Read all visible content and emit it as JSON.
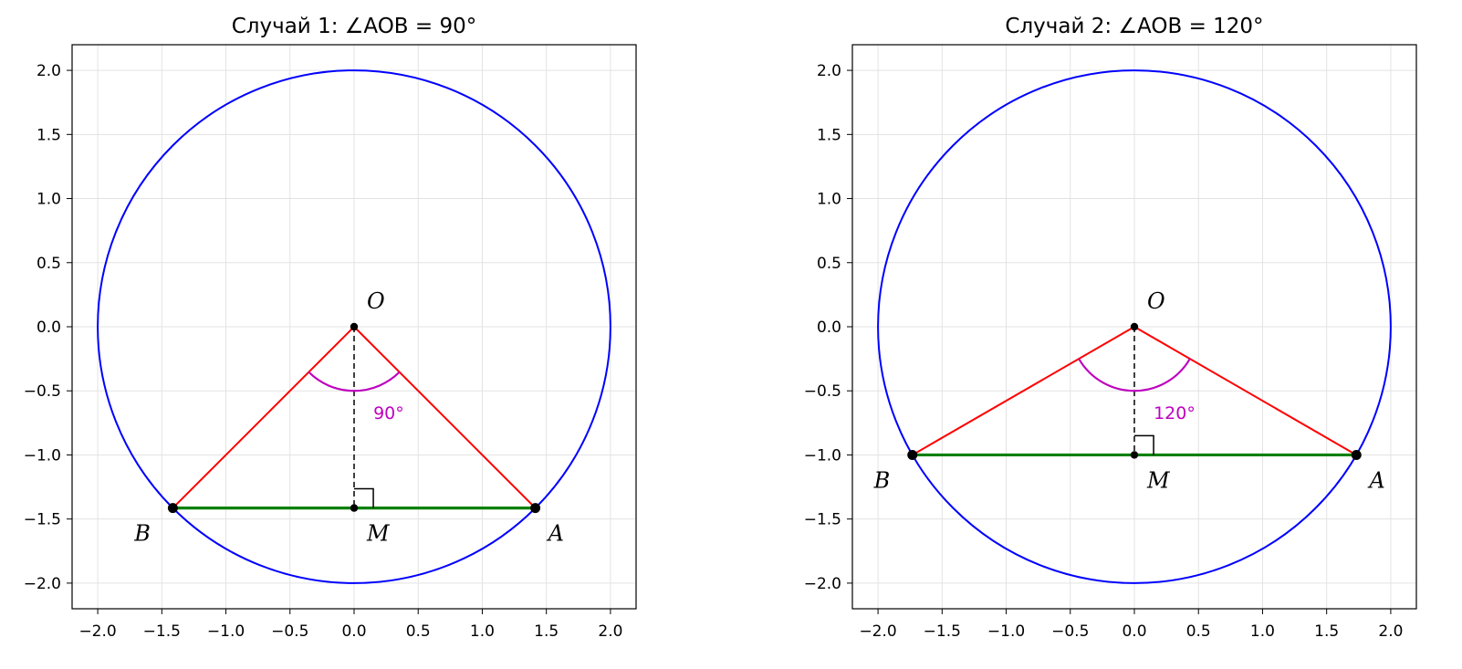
{
  "chart_data": [
    {
      "type": "scatter",
      "title": "Случай 1: ∠AOB = 90°",
      "xlim": [
        -2.2,
        2.2
      ],
      "ylim": [
        -2.2,
        2.2
      ],
      "xticks": [
        "−2.0",
        "−1.5",
        "−1.0",
        "−0.5",
        "0.0",
        "0.5",
        "1.0",
        "1.5",
        "2.0"
      ],
      "yticks": [
        "2.0",
        "1.5",
        "1.0",
        "0.5",
        "0.0",
        "−0.5",
        "−1.0",
        "−1.5",
        "−2.0"
      ],
      "grid": true,
      "circle": {
        "center": [
          0,
          0
        ],
        "radius": 2
      },
      "angle_deg": 90,
      "points": [
        {
          "name": "O",
          "x": 0,
          "y": 0
        },
        {
          "name": "A",
          "x": 1.414,
          "y": -1.414
        },
        {
          "name": "B",
          "x": -1.414,
          "y": -1.414
        },
        {
          "name": "M",
          "x": 0,
          "y": -1.414
        }
      ],
      "angle_label": "90°"
    },
    {
      "type": "scatter",
      "title": "Случай 2: ∠AOB = 120°",
      "xlim": [
        -2.2,
        2.2
      ],
      "ylim": [
        -2.2,
        2.2
      ],
      "xticks": [
        "−2.0",
        "−1.5",
        "−1.0",
        "−0.5",
        "0.0",
        "0.5",
        "1.0",
        "1.5",
        "2.0"
      ],
      "yticks": [
        "2.0",
        "1.5",
        "1.0",
        "0.5",
        "0.0",
        "−0.5",
        "−1.0",
        "−1.5",
        "−2.0"
      ],
      "grid": true,
      "circle": {
        "center": [
          0,
          0
        ],
        "radius": 2
      },
      "angle_deg": 120,
      "points": [
        {
          "name": "O",
          "x": 0,
          "y": 0
        },
        {
          "name": "A",
          "x": 1.732,
          "y": -1.0
        },
        {
          "name": "B",
          "x": -1.732,
          "y": -1.0
        },
        {
          "name": "M",
          "x": 0,
          "y": -1.0
        }
      ],
      "angle_label": "120°"
    }
  ],
  "colors": {
    "circle": "#0000ff",
    "radii": "#ff0000",
    "chord": "#008000",
    "angle_arc": "#bf00bf",
    "altitude": "#000000",
    "grid": "#e3e3e3"
  }
}
